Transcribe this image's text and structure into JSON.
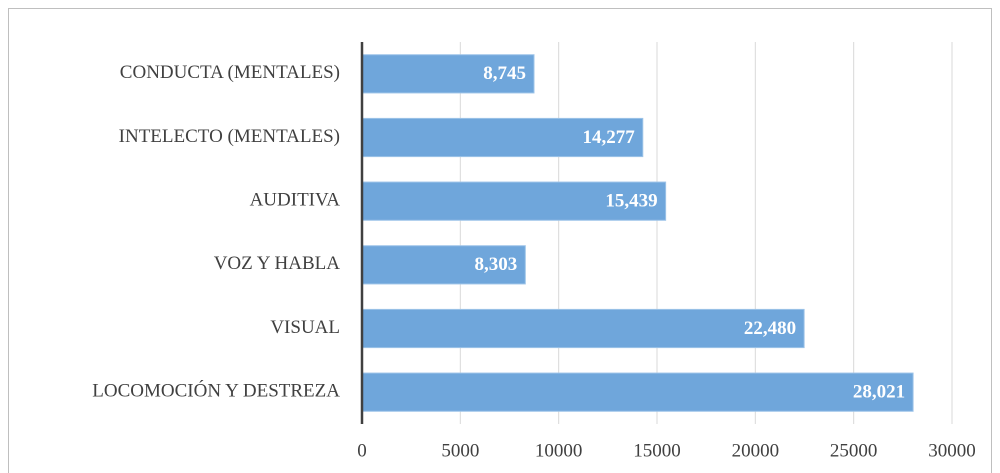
{
  "chart_data": {
    "type": "hbar",
    "categories": [
      "CONDUCTA (MENTALES)",
      "INTELECTO (MENTALES)",
      "AUDITIVA",
      "VOZ Y HABLA",
      "VISUAL",
      "LOCOMOCIÓN Y DESTREZA"
    ],
    "values": [
      8745,
      14277,
      15439,
      8303,
      22480,
      28021
    ],
    "value_labels": [
      "8,745",
      "14,277",
      "15,439",
      "8,303",
      "22,480",
      "28,021"
    ],
    "color": "#6fa6db",
    "xlim": [
      0,
      30000
    ],
    "xticks": [
      0,
      5000,
      10000,
      15000,
      20000,
      25000,
      30000
    ],
    "grid": true
  }
}
